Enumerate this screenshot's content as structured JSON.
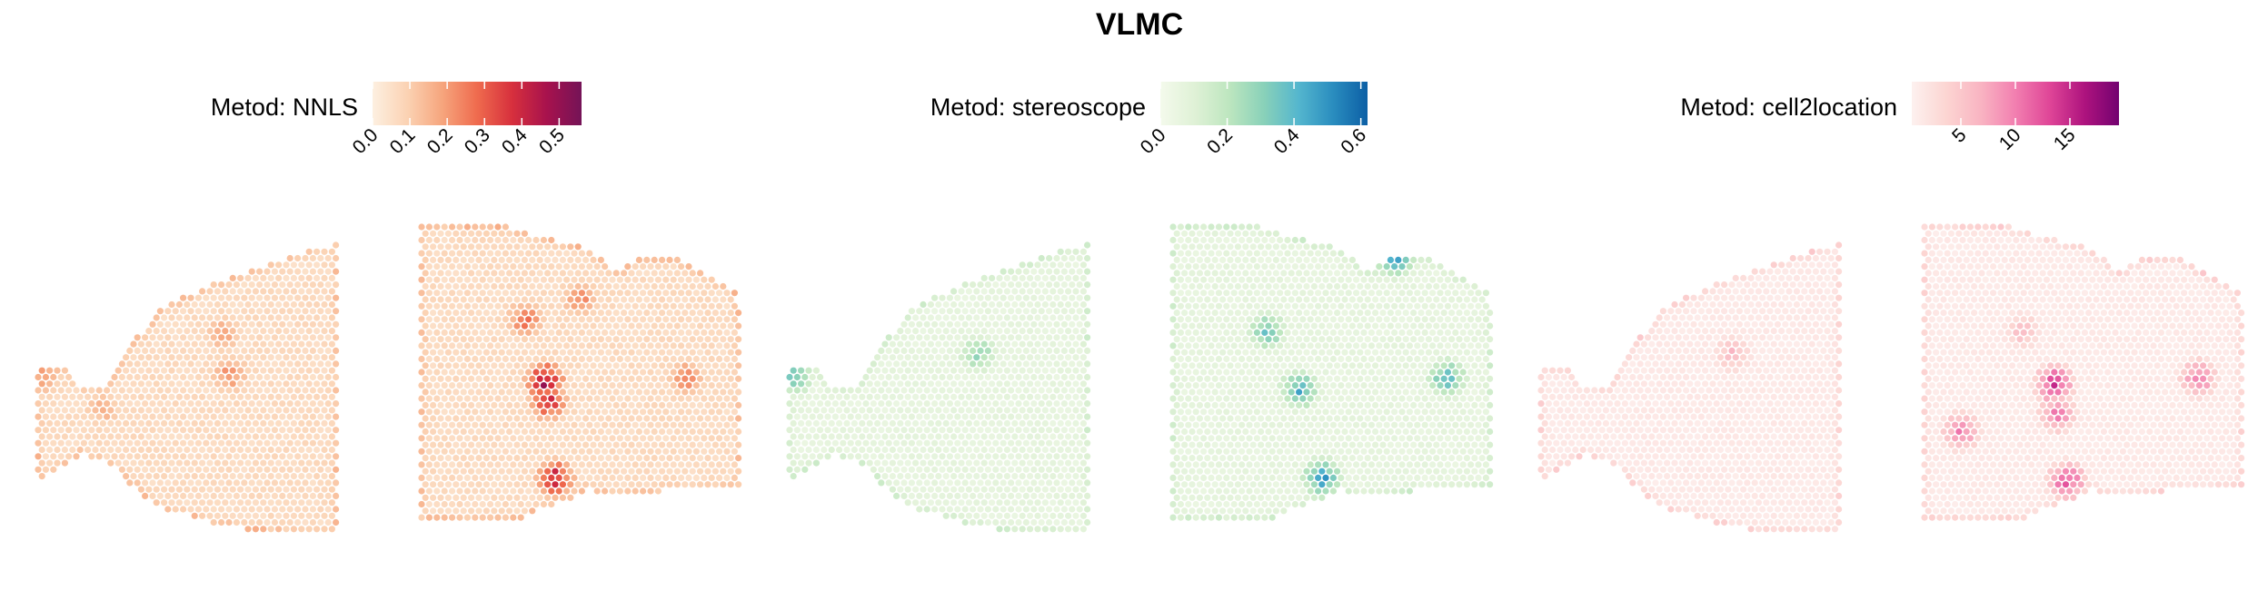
{
  "chart_data": {
    "type": "heatmap",
    "title": "VLMC",
    "panels": [
      {
        "legend_title": "Metod: NNLS",
        "palette": [
          "#fdf0e1",
          "#fbd2b3",
          "#f6a57d",
          "#ef6b4e",
          "#d7303d",
          "#a8124d",
          "#741357"
        ],
        "range": [
          0.0,
          0.56
        ],
        "ticks": [
          0.0,
          0.1,
          0.2,
          0.3,
          0.4,
          0.5
        ],
        "tick_labels": [
          "0.0",
          "0.1",
          "0.2",
          "0.3",
          "0.4",
          "0.5"
        ],
        "background_value": 0.06,
        "hotspots": [
          {
            "section": "left",
            "u": 0.62,
            "v": 0.31,
            "value": 0.22
          },
          {
            "section": "left",
            "u": 0.64,
            "v": 0.45,
            "value": 0.28
          },
          {
            "section": "left",
            "u": 0.22,
            "v": 0.57,
            "value": 0.2
          },
          {
            "section": "left",
            "u": 0.02,
            "v": 0.46,
            "value": 0.24
          },
          {
            "section": "right",
            "u": 0.39,
            "v": 0.53,
            "value": 0.55
          },
          {
            "section": "right",
            "u": 0.4,
            "v": 0.6,
            "value": 0.45
          },
          {
            "section": "right",
            "u": 0.33,
            "v": 0.32,
            "value": 0.33
          },
          {
            "section": "right",
            "u": 0.5,
            "v": 0.25,
            "value": 0.28
          },
          {
            "section": "right",
            "u": 0.83,
            "v": 0.52,
            "value": 0.3
          },
          {
            "section": "right",
            "u": 0.42,
            "v": 0.86,
            "value": 0.5
          }
        ]
      },
      {
        "legend_title": "Metod: stereoscope",
        "palette": [
          "#f4faec",
          "#dff1d6",
          "#bde6bf",
          "#89d1b9",
          "#54b6ce",
          "#2a8dbf",
          "#0c5fa5"
        ],
        "range": [
          0.0,
          0.62
        ],
        "ticks": [
          0.0,
          0.2,
          0.4,
          0.6
        ],
        "tick_labels": [
          "0.0",
          "0.2",
          "0.4",
          "0.6"
        ],
        "background_value": 0.06,
        "hotspots": [
          {
            "section": "left",
            "u": 0.63,
            "v": 0.38,
            "value": 0.35
          },
          {
            "section": "left",
            "u": 0.02,
            "v": 0.46,
            "value": 0.4
          },
          {
            "section": "right",
            "u": 0.4,
            "v": 0.56,
            "value": 0.5
          },
          {
            "section": "right",
            "u": 0.3,
            "v": 0.36,
            "value": 0.42
          },
          {
            "section": "right",
            "u": 0.86,
            "v": 0.52,
            "value": 0.48
          },
          {
            "section": "right",
            "u": 0.7,
            "v": 0.11,
            "value": 0.6
          },
          {
            "section": "right",
            "u": 0.47,
            "v": 0.86,
            "value": 0.55
          }
        ]
      },
      {
        "legend_title": "Metod: cell2location",
        "palette": [
          "#fdf1ef",
          "#fcd5d2",
          "#f9b4c2",
          "#f27fb0",
          "#df4597",
          "#ae137e",
          "#730270"
        ],
        "range": [
          0.5,
          19.5
        ],
        "ticks": [
          5,
          10,
          15
        ],
        "tick_labels": [
          "5",
          "10",
          "15"
        ],
        "background_value": 1.3,
        "hotspots": [
          {
            "section": "left",
            "u": 0.64,
            "v": 0.38,
            "value": 7
          },
          {
            "section": "right",
            "u": 0.41,
            "v": 0.54,
            "value": 17
          },
          {
            "section": "right",
            "u": 0.42,
            "v": 0.64,
            "value": 12
          },
          {
            "section": "right",
            "u": 0.31,
            "v": 0.36,
            "value": 7
          },
          {
            "section": "right",
            "u": 0.86,
            "v": 0.52,
            "value": 12
          },
          {
            "section": "right",
            "u": 0.12,
            "v": 0.7,
            "value": 12
          },
          {
            "section": "right",
            "u": 0.45,
            "v": 0.87,
            "value": 15
          }
        ]
      }
    ]
  }
}
